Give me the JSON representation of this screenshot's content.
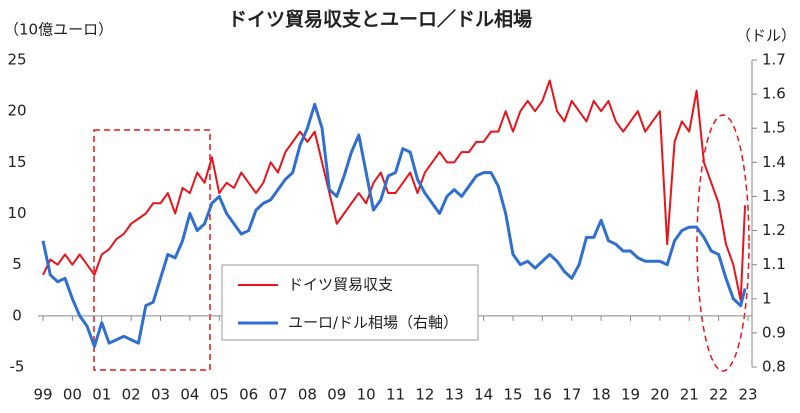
{
  "chart_data": {
    "type": "line",
    "title": "ドイツ貿易収支とユーロ／ドル相場",
    "y_label": "（10億ユーロ）",
    "y2_label": "（ドル）",
    "x": [
      1999,
      1999.25,
      1999.5,
      1999.75,
      2000,
      2000.25,
      2000.5,
      2000.75,
      2001,
      2001.25,
      2001.5,
      2001.75,
      2002,
      2002.25,
      2002.5,
      2002.75,
      2003,
      2003.25,
      2003.5,
      2003.75,
      2004,
      2004.25,
      2004.5,
      2004.75,
      2005,
      2005.25,
      2005.5,
      2005.75,
      2006,
      2006.25,
      2006.5,
      2006.75,
      2007,
      2007.25,
      2007.5,
      2007.75,
      2008,
      2008.25,
      2008.5,
      2008.75,
      2009,
      2009.25,
      2009.5,
      2009.75,
      2010,
      2010.25,
      2010.5,
      2010.75,
      2011,
      2011.25,
      2011.5,
      2011.75,
      2012,
      2012.25,
      2012.5,
      2012.75,
      2013,
      2013.25,
      2013.5,
      2013.75,
      2014,
      2014.25,
      2014.5,
      2014.75,
      2015,
      2015.25,
      2015.5,
      2015.75,
      2016,
      2016.25,
      2016.5,
      2016.75,
      2017,
      2017.25,
      2017.5,
      2017.75,
      2018,
      2018.25,
      2018.5,
      2018.75,
      2019,
      2019.25,
      2019.5,
      2019.75,
      2020,
      2020.25,
      2020.5,
      2020.75,
      2021,
      2021.25,
      2021.5,
      2021.75,
      2022,
      2022.25,
      2022.5,
      2022.75,
      2022.9
    ],
    "series": [
      {
        "name": "ドイツ貿易収支",
        "color": "#e8141b",
        "axis": "y",
        "values": [
          4,
          5.5,
          5,
          6,
          5,
          6,
          5,
          4,
          6,
          6.5,
          7.5,
          8,
          9,
          9.5,
          10,
          11,
          11,
          12,
          10,
          12.5,
          12,
          14,
          13,
          15.5,
          12,
          13,
          12.5,
          14,
          13,
          12,
          13,
          15,
          14,
          16,
          17,
          18,
          17,
          18,
          15,
          12,
          9,
          10,
          11,
          12,
          11,
          13,
          14,
          12,
          12,
          13,
          14,
          12,
          14,
          15,
          16,
          15,
          15,
          16,
          16,
          17,
          17,
          18,
          18,
          20,
          18,
          20,
          21,
          20,
          21,
          23,
          20,
          19,
          21,
          20,
          19,
          21,
          20,
          21,
          19,
          18,
          19,
          20,
          18,
          19,
          20,
          7,
          17,
          19,
          18,
          22,
          15,
          13,
          11,
          7,
          5,
          1.5,
          10.8
        ]
      },
      {
        "name": "ユーロ/ドル相場（右軸）",
        "color": "#2e6fd0",
        "axis": "y2",
        "values": [
          1.17,
          1.07,
          1.05,
          1.06,
          1.0,
          0.95,
          0.92,
          0.86,
          0.93,
          0.87,
          0.88,
          0.89,
          0.88,
          0.87,
          0.98,
          0.99,
          1.06,
          1.13,
          1.12,
          1.17,
          1.25,
          1.2,
          1.22,
          1.28,
          1.3,
          1.25,
          1.22,
          1.19,
          1.2,
          1.26,
          1.28,
          1.29,
          1.32,
          1.35,
          1.37,
          1.45,
          1.5,
          1.57,
          1.5,
          1.32,
          1.3,
          1.36,
          1.43,
          1.48,
          1.37,
          1.26,
          1.29,
          1.36,
          1.37,
          1.44,
          1.43,
          1.35,
          1.31,
          1.28,
          1.25,
          1.3,
          1.32,
          1.3,
          1.33,
          1.36,
          1.37,
          1.37,
          1.33,
          1.25,
          1.13,
          1.1,
          1.11,
          1.09,
          1.11,
          1.13,
          1.11,
          1.08,
          1.06,
          1.1,
          1.18,
          1.18,
          1.23,
          1.17,
          1.16,
          1.14,
          1.14,
          1.12,
          1.11,
          1.11,
          1.11,
          1.1,
          1.17,
          1.2,
          1.21,
          1.21,
          1.18,
          1.14,
          1.13,
          1.06,
          1.0,
          0.98,
          1.03
        ]
      }
    ],
    "xlim": [
      1999,
      2023
    ],
    "xticks": [
      {
        "value": 1999,
        "label": "99"
      },
      {
        "value": 2000,
        "label": "00"
      },
      {
        "value": 2001,
        "label": "01"
      },
      {
        "value": 2002,
        "label": "02"
      },
      {
        "value": 2003,
        "label": "03"
      },
      {
        "value": 2004,
        "label": "04"
      },
      {
        "value": 2005,
        "label": "05"
      },
      {
        "value": 2006,
        "label": "06"
      },
      {
        "value": 2007,
        "label": "07"
      },
      {
        "value": 2008,
        "label": "08"
      },
      {
        "value": 2009,
        "label": "09"
      },
      {
        "value": 2010,
        "label": "10"
      },
      {
        "value": 2011,
        "label": "11"
      },
      {
        "value": 2012,
        "label": "12"
      },
      {
        "value": 2013,
        "label": "13"
      },
      {
        "value": 2014,
        "label": "14"
      },
      {
        "value": 2015,
        "label": "15"
      },
      {
        "value": 2016,
        "label": "16"
      },
      {
        "value": 2017,
        "label": "17"
      },
      {
        "value": 2018,
        "label": "18"
      },
      {
        "value": 2019,
        "label": "19"
      },
      {
        "value": 2020,
        "label": "20"
      },
      {
        "value": 2021,
        "label": "21"
      },
      {
        "value": 2022,
        "label": "22"
      },
      {
        "value": 2023,
        "label": "23"
      }
    ],
    "ylim": [
      -5,
      25
    ],
    "yticks": [
      25,
      20,
      15,
      10,
      5,
      0,
      -5
    ],
    "y2lim": [
      0.8,
      1.7
    ],
    "y2ticks": [
      1.7,
      1.6,
      1.5,
      1.4,
      1.3,
      1.2,
      1.1,
      1,
      0.9,
      0.8
    ],
    "grid": false
  }
}
